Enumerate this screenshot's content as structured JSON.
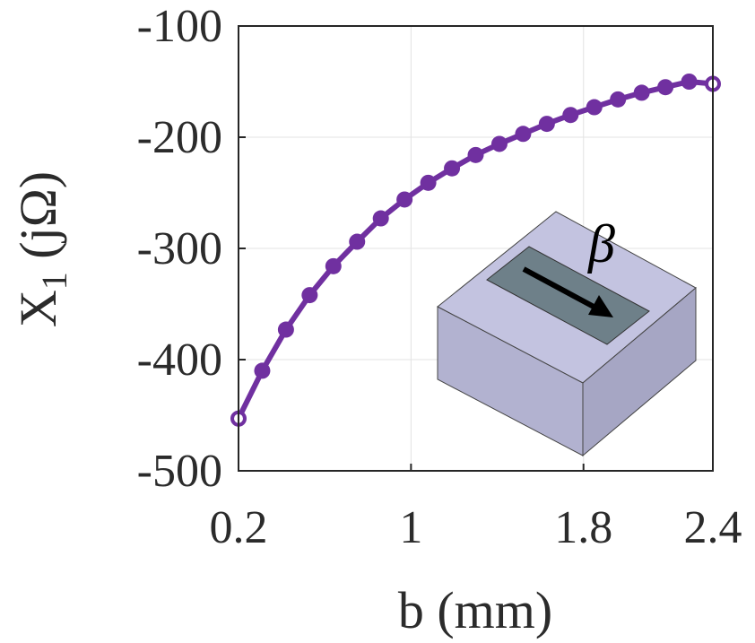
{
  "chart_data": {
    "type": "line",
    "xlabel": "b (mm)",
    "ylabel_main": "X",
    "ylabel_sub": "1",
    "ylabel_unit": "(jΩ)",
    "xlim": [
      0.2,
      2.4
    ],
    "ylim": [
      -500,
      -100
    ],
    "xticks": [
      0.2,
      1,
      1.8,
      2.4
    ],
    "xtick_labels": [
      "0.2",
      "1",
      "1.8",
      "2.4"
    ],
    "yticks": [
      -500,
      -400,
      -300,
      -200,
      -100
    ],
    "ytick_labels": [
      "-500",
      "-400",
      "-300",
      "-200",
      "-100"
    ],
    "grid": true,
    "series": [
      {
        "color": "#7030a0",
        "marker": "circle",
        "x": [
          0.2,
          0.31,
          0.42,
          0.53,
          0.64,
          0.75,
          0.86,
          0.97,
          1.08,
          1.19,
          1.3,
          1.41,
          1.52,
          1.63,
          1.74,
          1.85,
          1.96,
          2.07,
          2.18,
          2.29,
          2.4
        ],
        "y": [
          -453,
          -410,
          -373,
          -342,
          -316,
          -294,
          -273,
          -256,
          -241,
          -228,
          -216,
          -206,
          -197,
          -188,
          -180,
          -173,
          -166,
          -160,
          -155,
          -150,
          -152
        ]
      }
    ],
    "inset_label": "β"
  }
}
